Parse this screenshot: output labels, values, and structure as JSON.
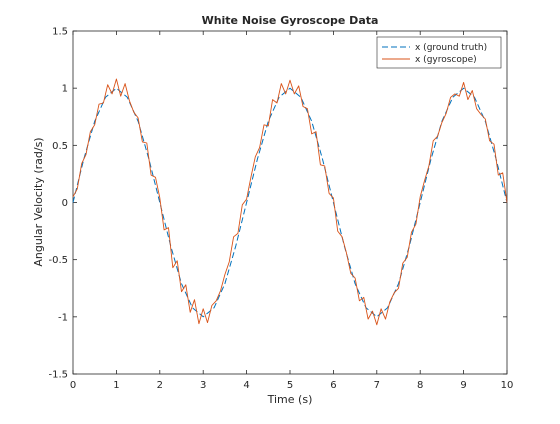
{
  "chart_data": {
    "type": "line",
    "title": "White Noise Gyroscope Data",
    "xlabel": "Time (s)",
    "ylabel": "Angular Velocity (rad/s)",
    "xlim": [
      0,
      10
    ],
    "ylim": [
      -1.5,
      1.5
    ],
    "xticks": [
      "0",
      "1",
      "2",
      "3",
      "4",
      "5",
      "6",
      "7",
      "8",
      "9",
      "10"
    ],
    "yticks": [
      "-1.5",
      "-1",
      "-0.5",
      "0",
      "0.5",
      "1",
      "1.5"
    ],
    "grid": false,
    "legend_position": "top-right",
    "series": [
      {
        "name": "x (ground truth)",
        "style": "dashed",
        "color": "#0072bd",
        "x": [
          0,
          0.25,
          0.5,
          0.75,
          1,
          1.25,
          1.5,
          1.75,
          2,
          2.25,
          2.5,
          2.75,
          3,
          3.25,
          3.5,
          3.75,
          4,
          4.25,
          4.5,
          4.75,
          5,
          5.25,
          5.5,
          5.75,
          6,
          6.25,
          6.5,
          6.75,
          7,
          7.25,
          7.5,
          7.75,
          8,
          8.25,
          8.5,
          8.75,
          9,
          9.25,
          9.5,
          9.75,
          10
        ],
        "y": [
          0,
          0.38,
          0.71,
          0.92,
          1.0,
          0.92,
          0.71,
          0.38,
          0,
          -0.38,
          -0.71,
          -0.92,
          -1.0,
          -0.92,
          -0.71,
          -0.38,
          0,
          0.38,
          0.71,
          0.92,
          1.0,
          0.92,
          0.71,
          0.38,
          0,
          -0.38,
          -0.71,
          -0.92,
          -1.0,
          -0.92,
          -0.71,
          -0.38,
          0,
          0.38,
          0.71,
          0.92,
          1.0,
          0.92,
          0.71,
          0.38,
          0
        ]
      },
      {
        "name": "x (gyroscope)",
        "style": "solid",
        "color": "#d95319",
        "x": [
          0,
          0.1,
          0.2,
          0.3,
          0.4,
          0.5,
          0.6,
          0.7,
          0.8,
          0.9,
          1.0,
          1.1,
          1.2,
          1.3,
          1.4,
          1.5,
          1.6,
          1.7,
          1.8,
          1.9,
          2.0,
          2.1,
          2.2,
          2.3,
          2.4,
          2.5,
          2.6,
          2.7,
          2.8,
          2.9,
          3.0,
          3.1,
          3.2,
          3.3,
          3.4,
          3.5,
          3.6,
          3.7,
          3.8,
          3.9,
          4.0,
          4.1,
          4.2,
          4.3,
          4.4,
          4.5,
          4.6,
          4.7,
          4.8,
          4.9,
          5.0,
          5.1,
          5.2,
          5.3,
          5.4,
          5.5,
          5.6,
          5.7,
          5.8,
          5.9,
          6.0,
          6.1,
          6.2,
          6.3,
          6.4,
          6.5,
          6.6,
          6.7,
          6.8,
          6.9,
          7.0,
          7.1,
          7.2,
          7.3,
          7.4,
          7.5,
          7.6,
          7.7,
          7.8,
          7.9,
          8.0,
          8.1,
          8.2,
          8.3,
          8.4,
          8.5,
          8.6,
          8.7,
          8.8,
          8.9,
          9.0,
          9.1,
          9.2,
          9.3,
          9.4,
          9.5,
          9.6,
          9.7,
          9.8,
          9.9,
          10.0
        ],
        "y": [
          0.05,
          0.12,
          0.34,
          0.42,
          0.62,
          0.68,
          0.86,
          0.87,
          1.03,
          0.95,
          1.08,
          0.93,
          1.04,
          0.89,
          0.79,
          0.74,
          0.53,
          0.52,
          0.24,
          0.22,
          0.04,
          -0.24,
          -0.22,
          -0.57,
          -0.51,
          -0.78,
          -0.72,
          -0.96,
          -0.85,
          -1.06,
          -0.93,
          -1.05,
          -0.9,
          -0.86,
          -0.77,
          -0.63,
          -0.52,
          -0.3,
          -0.27,
          -0.02,
          0.03,
          0.22,
          0.4,
          0.48,
          0.68,
          0.67,
          0.9,
          0.87,
          1.04,
          0.95,
          1.07,
          0.95,
          1.02,
          0.84,
          0.82,
          0.6,
          0.62,
          0.33,
          0.32,
          0.08,
          0.04,
          -0.25,
          -0.3,
          -0.44,
          -0.62,
          -0.66,
          -0.86,
          -0.83,
          -1.02,
          -0.95,
          -1.07,
          -0.93,
          -1.02,
          -0.87,
          -0.79,
          -0.75,
          -0.53,
          -0.48,
          -0.26,
          -0.19,
          0.05,
          0.19,
          0.32,
          0.54,
          0.58,
          0.7,
          0.78,
          0.92,
          0.95,
          0.93,
          1.05,
          0.9,
          0.98,
          0.82,
          0.77,
          0.73,
          0.54,
          0.51,
          0.24,
          0.26,
          0.0
        ]
      }
    ]
  }
}
